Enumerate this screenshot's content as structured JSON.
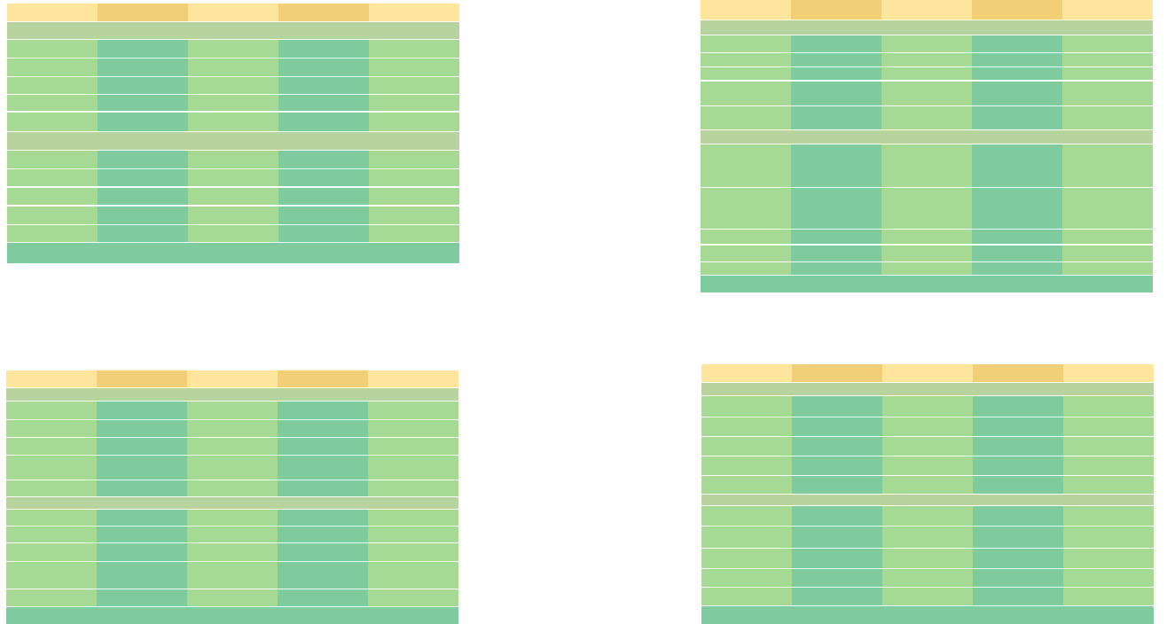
{
  "colors": {
    "header_light": "#fee59c",
    "header_dark": "#f2ce76",
    "section": "#b8d49e",
    "cell_light": "#a6da94",
    "cell_dark": "#80cb9d",
    "footer": "#80cb9d",
    "background": "#ffffff"
  },
  "tables": [
    {
      "columns": 5,
      "structure": [
        "header",
        "section",
        "row",
        "row",
        "row",
        "row",
        "row",
        "section",
        "row",
        "row",
        "row",
        "row",
        "row",
        "footer"
      ]
    },
    {
      "columns": 5,
      "structure": [
        "header",
        "section",
        "row",
        "row",
        "row",
        "row",
        "row",
        "section",
        "row",
        "row",
        "row",
        "row",
        "row",
        "footer"
      ]
    },
    {
      "columns": 5,
      "structure": [
        "header",
        "section",
        "row",
        "row",
        "row",
        "row",
        "row",
        "section",
        "row",
        "row",
        "row",
        "row",
        "row",
        "footer"
      ]
    },
    {
      "columns": 5,
      "structure": [
        "header",
        "section",
        "row",
        "row",
        "row",
        "row",
        "row",
        "section",
        "row",
        "row",
        "row",
        "row",
        "row",
        "footer"
      ]
    }
  ]
}
